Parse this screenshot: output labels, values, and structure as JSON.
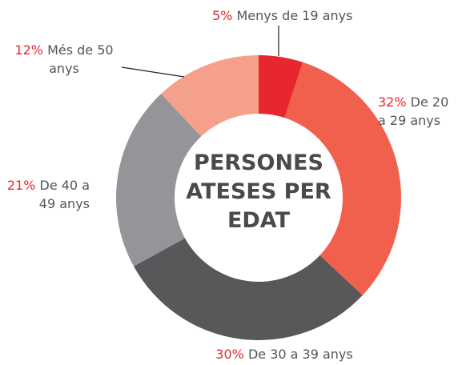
{
  "chart_data": {
    "type": "donut",
    "title": "PERSONES ATESES PER EDAT",
    "categories": [
      "Menys de 19 anys",
      "De 20 a 29 anys",
      "De 30 a 39 anys",
      "De 40 a 49 anys",
      "Més de 50 anys"
    ],
    "values": [
      5,
      32,
      30,
      21,
      12
    ],
    "value_labels": [
      "5%",
      "32%",
      "30%",
      "21%",
      "12%"
    ],
    "colors": [
      "#e8262f",
      "#f0604d",
      "#58585a",
      "#939598",
      "#f5a08a"
    ]
  }
}
